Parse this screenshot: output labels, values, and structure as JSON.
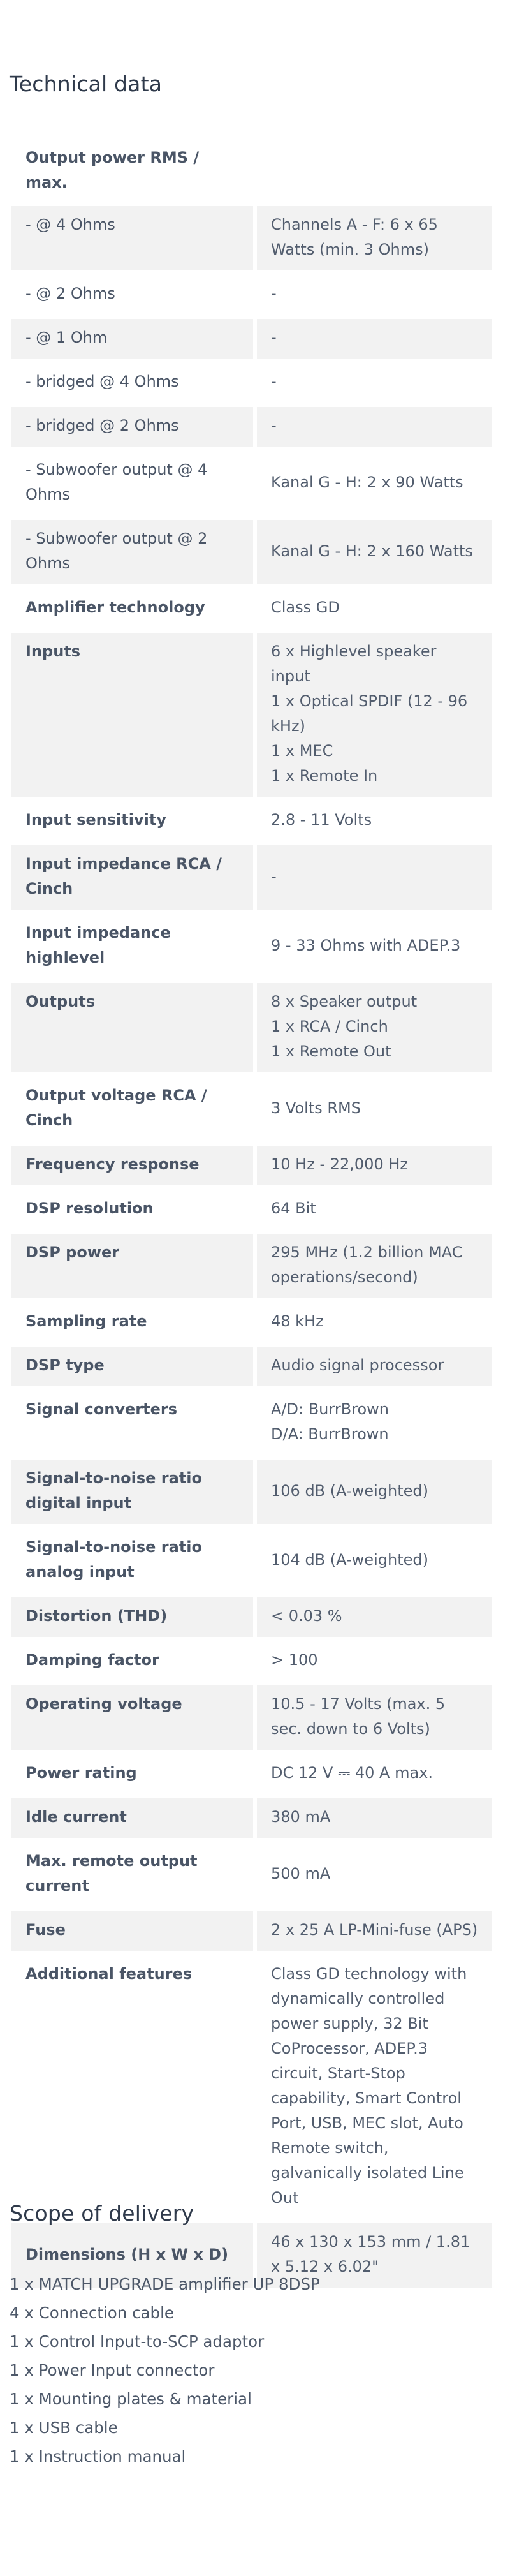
{
  "technical_data": {
    "title": "Technical data",
    "rows": [
      {
        "label": "Output power RMS / max.",
        "values": [],
        "bold": true,
        "shade": false,
        "header": true
      },
      {
        "label": "- @ 4 Ohms",
        "values": [
          "Channels A - F: 6 x 65 Watts (min. 3 Ohms)"
        ],
        "bold": false,
        "shade": true
      },
      {
        "label": "- @ 2 Ohms",
        "values": [
          "-"
        ],
        "bold": false,
        "shade": false
      },
      {
        "label": "- @ 1 Ohm",
        "values": [
          "-"
        ],
        "bold": false,
        "shade": true
      },
      {
        "label": "- bridged @ 4 Ohms",
        "values": [
          "-"
        ],
        "bold": false,
        "shade": false
      },
      {
        "label": "- bridged @ 2 Ohms",
        "values": [
          "-"
        ],
        "bold": false,
        "shade": true
      },
      {
        "label": "- Subwoofer output @ 4 Ohms",
        "values": [
          "Kanal G - H: 2 x 90 Watts"
        ],
        "bold": false,
        "shade": false,
        "mid": true
      },
      {
        "label": "- Subwoofer output @ 2 Ohms",
        "values": [
          "Kanal G - H: 2 x 160 Watts"
        ],
        "bold": false,
        "shade": true,
        "mid": true
      },
      {
        "label": "Amplifier technology",
        "values": [
          "Class GD"
        ],
        "bold": true,
        "shade": false
      },
      {
        "label": "Inputs",
        "values": [
          "6 x Highlevel speaker input",
          "1 x Optical SPDIF (12 - 96 kHz)",
          "1 x MEC",
          "1 x Remote In"
        ],
        "bold": true,
        "shade": true
      },
      {
        "label": "Input sensitivity",
        "values": [
          "2.8 - 11 Volts"
        ],
        "bold": true,
        "shade": false
      },
      {
        "label": "Input impedance RCA / Cinch",
        "values": [
          "-"
        ],
        "bold": true,
        "shade": true,
        "mid": true
      },
      {
        "label": "Input impedance highlevel",
        "values": [
          "9 - 33 Ohms with ADEP.3"
        ],
        "bold": true,
        "shade": false,
        "mid": true
      },
      {
        "label": "Outputs",
        "values": [
          "8 x Speaker output",
          "1 x RCA / Cinch",
          "1 x Remote Out"
        ],
        "bold": true,
        "shade": true
      },
      {
        "label": "Output voltage RCA / Cinch",
        "values": [
          "3 Volts RMS"
        ],
        "bold": true,
        "shade": false,
        "mid": true
      },
      {
        "label": "Frequency response",
        "values": [
          "10 Hz - 22,000 Hz"
        ],
        "bold": true,
        "shade": true
      },
      {
        "label": "DSP resolution",
        "values": [
          "64 Bit"
        ],
        "bold": true,
        "shade": false
      },
      {
        "label": "DSP power",
        "values": [
          "295 MHz (1.2 billion MAC operations/second)"
        ],
        "bold": true,
        "shade": true
      },
      {
        "label": "Sampling rate",
        "values": [
          "48 kHz"
        ],
        "bold": true,
        "shade": false
      },
      {
        "label": "DSP type",
        "values": [
          "Audio signal processor"
        ],
        "bold": true,
        "shade": true
      },
      {
        "label": "Signal converters",
        "values": [
          "A/D: BurrBrown",
          "D/A: BurrBrown"
        ],
        "bold": true,
        "shade": false
      },
      {
        "label": "Signal-to-noise ratio digital input",
        "values": [
          "106 dB (A-weighted)"
        ],
        "bold": true,
        "shade": true,
        "mid": true
      },
      {
        "label": "Signal-to-noise ratio analog input",
        "values": [
          "104 dB (A-weighted)"
        ],
        "bold": true,
        "shade": false,
        "mid": true
      },
      {
        "label": "Distortion (THD)",
        "values": [
          "< 0.03 %"
        ],
        "bold": true,
        "shade": true
      },
      {
        "label": "Damping factor",
        "values": [
          "> 100"
        ],
        "bold": true,
        "shade": false
      },
      {
        "label": "Operating voltage",
        "values": [
          "10.5 - 17 Volts (max. 5 sec. down to 6 Volts)"
        ],
        "bold": true,
        "shade": true
      },
      {
        "label": "Power rating",
        "values": [
          "DC 12 V ⎓ 40 A max."
        ],
        "bold": true,
        "shade": false
      },
      {
        "label": "Idle current",
        "values": [
          "380 mA"
        ],
        "bold": true,
        "shade": true
      },
      {
        "label": "Max. remote output current",
        "values": [
          "500 mA"
        ],
        "bold": true,
        "shade": false,
        "mid": true
      },
      {
        "label": "Fuse",
        "values": [
          "2 x 25 A LP-Mini-fuse (APS)"
        ],
        "bold": true,
        "shade": true
      },
      {
        "label": "Additional features",
        "values": [
          "Class GD technology with dynamically controlled power supply, 32 Bit CoProcessor, ADEP.3 circuit, Start-Stop capability, Smart Control Port, USB, MEC slot, Auto Remote switch, galvanically isolated Line Out"
        ],
        "bold": true,
        "shade": false
      },
      {
        "label": "Dimensions (H x W x D)",
        "values": [
          "46 x 130 x 153 mm / 1.81 x 5.12 x 6.02\""
        ],
        "bold": true,
        "shade": true,
        "mid": true
      }
    ]
  },
  "scope_of_delivery": {
    "title": "Scope of delivery",
    "items": [
      "1 x MATCH UPGRADE amplifier UP 8DSP",
      "4 x Connection cable",
      "1 x Control Input-to-SCP adaptor",
      "1 x Power Input connector",
      "1 x Mounting plates & material",
      "1 x USB cable",
      "1 x Instruction manual"
    ]
  }
}
